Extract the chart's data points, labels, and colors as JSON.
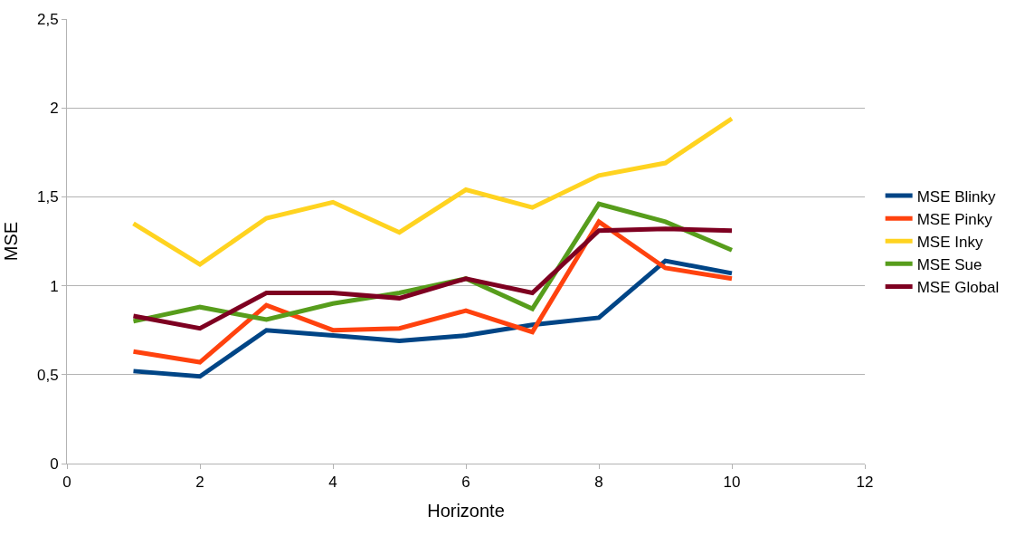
{
  "chart_data": {
    "type": "line",
    "xlabel": "Horizonte",
    "ylabel": "MSE",
    "x": [
      1,
      2,
      3,
      4,
      5,
      6,
      7,
      8,
      9,
      10
    ],
    "series": [
      {
        "name": "MSE Blinky",
        "color": "#004586",
        "values": [
          0.52,
          0.49,
          0.75,
          0.72,
          0.69,
          0.72,
          0.78,
          0.82,
          1.14,
          1.07
        ]
      },
      {
        "name": "MSE Pinky",
        "color": "#ff420e",
        "values": [
          0.63,
          0.57,
          0.89,
          0.75,
          0.76,
          0.86,
          0.74,
          1.36,
          1.1,
          1.04
        ]
      },
      {
        "name": "MSE Inky",
        "color": "#ffd320",
        "values": [
          1.35,
          1.12,
          1.38,
          1.47,
          1.3,
          1.54,
          1.44,
          1.62,
          1.69,
          1.94
        ]
      },
      {
        "name": "MSE Sue",
        "color": "#579d1c",
        "values": [
          0.8,
          0.88,
          0.81,
          0.9,
          0.96,
          1.04,
          0.87,
          1.46,
          1.36,
          1.2
        ]
      },
      {
        "name": "MSE Global",
        "color": "#7e0021",
        "values": [
          0.83,
          0.76,
          0.96,
          0.96,
          0.93,
          1.04,
          0.96,
          1.31,
          1.32,
          1.31
        ]
      }
    ],
    "xlim": [
      0,
      12
    ],
    "xticks": [
      0,
      2,
      4,
      6,
      8,
      10,
      12
    ],
    "ylim": [
      0,
      2.5
    ],
    "yticks": [
      0,
      {
        "value": 0.5,
        "label": "0,5"
      },
      1,
      {
        "value": 1.5,
        "label": "1,5"
      },
      2,
      {
        "value": 2.5,
        "label": "2,5"
      }
    ],
    "grid": "y",
    "legend": "right",
    "marker": "none",
    "line_style": "solid"
  }
}
